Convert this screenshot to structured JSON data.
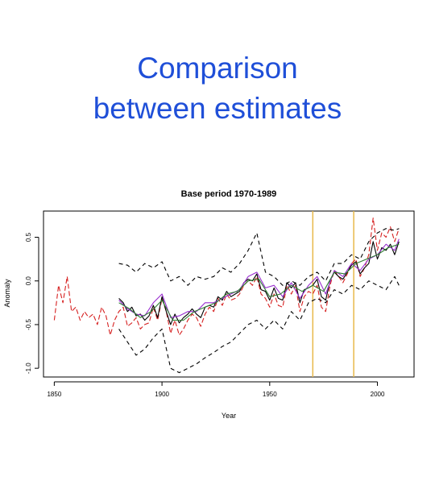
{
  "slide": {
    "title_line1": "Comparison",
    "title_line2": "between estimates"
  },
  "colors": {
    "title": "#1f4fd8",
    "base_period_lines": "#e8b84a"
  },
  "chart_data": {
    "type": "line",
    "title": "Base period 1970-1989",
    "xlabel": "Year",
    "ylabel": "Anomaly",
    "xlim": [
      1845,
      2017
    ],
    "ylim": [
      -1.1,
      0.8
    ],
    "x_ticks": [
      1850,
      1900,
      1950,
      2000
    ],
    "x_tick_labels": [
      "1850",
      "1900",
      "1950",
      "2000"
    ],
    "y_ticks": [
      -1.0,
      -0.5,
      0.0,
      0.5
    ],
    "y_tick_labels": [
      "-1.0",
      "-0.5",
      "0.0",
      "0.5"
    ],
    "grid": false,
    "vertical_lines": [
      {
        "x": 1970,
        "color": "#e8b84a"
      },
      {
        "x": 1989,
        "color": "#e8b84a"
      }
    ],
    "series": [
      {
        "color": "#d62020",
        "dash": "6,3",
        "x": [
          1850,
          1852,
          1854,
          1856,
          1858,
          1860,
          1862,
          1864,
          1866,
          1868,
          1870,
          1872,
          1874,
          1876,
          1878,
          1880,
          1882,
          1884,
          1886,
          1888,
          1890,
          1892,
          1894,
          1896,
          1898,
          1900,
          1902,
          1904,
          1906,
          1908,
          1910,
          1912,
          1914,
          1916,
          1918,
          1920,
          1922,
          1924,
          1926,
          1928,
          1930,
          1932,
          1934,
          1936,
          1938,
          1940,
          1942,
          1944,
          1946,
          1948,
          1950,
          1952,
          1954,
          1956,
          1958,
          1960,
          1962,
          1964,
          1966,
          1968,
          1970,
          1972,
          1974,
          1976,
          1978,
          1980,
          1982,
          1984,
          1986,
          1988,
          1990,
          1992,
          1994,
          1996,
          1998,
          2000,
          2002,
          2004,
          2006,
          2008,
          2010
        ],
        "y": [
          -0.45,
          -0.05,
          -0.25,
          0.05,
          -0.35,
          -0.3,
          -0.45,
          -0.35,
          -0.42,
          -0.38,
          -0.5,
          -0.3,
          -0.4,
          -0.62,
          -0.45,
          -0.35,
          -0.3,
          -0.52,
          -0.48,
          -0.42,
          -0.55,
          -0.5,
          -0.48,
          -0.3,
          -0.45,
          -0.2,
          -0.35,
          -0.6,
          -0.45,
          -0.62,
          -0.55,
          -0.45,
          -0.38,
          -0.42,
          -0.52,
          -0.38,
          -0.3,
          -0.35,
          -0.2,
          -0.28,
          -0.15,
          -0.22,
          -0.2,
          -0.15,
          -0.05,
          0.0,
          -0.05,
          0.05,
          -0.15,
          -0.2,
          -0.3,
          -0.15,
          -0.28,
          -0.3,
          -0.05,
          -0.15,
          -0.05,
          -0.35,
          -0.18,
          -0.12,
          -0.15,
          -0.05,
          -0.3,
          -0.35,
          -0.05,
          0.12,
          0.05,
          -0.02,
          0.08,
          0.2,
          0.25,
          0.05,
          0.15,
          0.3,
          0.72,
          0.35,
          0.55,
          0.5,
          0.62,
          0.45,
          0.6
        ]
      },
      {
        "color": "#000000",
        "dash": "",
        "x": [
          1880,
          1882,
          1884,
          1886,
          1888,
          1890,
          1892,
          1894,
          1896,
          1898,
          1900,
          1902,
          1904,
          1906,
          1908,
          1910,
          1912,
          1914,
          1916,
          1918,
          1920,
          1922,
          1924,
          1926,
          1928,
          1930,
          1932,
          1934,
          1936,
          1938,
          1940,
          1942,
          1944,
          1946,
          1948,
          1950,
          1952,
          1954,
          1956,
          1958,
          1960,
          1962,
          1964,
          1966,
          1968,
          1970,
          1972,
          1974,
          1976,
          1978,
          1980,
          1982,
          1984,
          1986,
          1988,
          1990,
          1992,
          1994,
          1996,
          1998,
          2000,
          2002,
          2004,
          2006,
          2008,
          2010
        ],
        "y": [
          -0.2,
          -0.25,
          -0.35,
          -0.3,
          -0.4,
          -0.38,
          -0.45,
          -0.4,
          -0.28,
          -0.42,
          -0.18,
          -0.35,
          -0.5,
          -0.38,
          -0.48,
          -0.42,
          -0.38,
          -0.32,
          -0.38,
          -0.42,
          -0.3,
          -0.28,
          -0.3,
          -0.18,
          -0.22,
          -0.12,
          -0.18,
          -0.15,
          -0.12,
          -0.02,
          0.02,
          0.0,
          0.08,
          -0.1,
          -0.12,
          -0.22,
          -0.08,
          -0.2,
          -0.22,
          -0.02,
          -0.08,
          -0.02,
          -0.25,
          -0.1,
          -0.08,
          -0.05,
          0.02,
          -0.18,
          -0.22,
          0.0,
          0.1,
          0.05,
          0.02,
          0.1,
          0.18,
          0.22,
          0.08,
          0.15,
          0.2,
          0.45,
          0.25,
          0.38,
          0.35,
          0.42,
          0.3,
          0.45
        ]
      },
      {
        "color": "#9a2fd0",
        "dash": "",
        "x": [
          1880,
          1884,
          1888,
          1892,
          1896,
          1900,
          1904,
          1908,
          1912,
          1916,
          1920,
          1924,
          1928,
          1932,
          1936,
          1940,
          1944,
          1948,
          1952,
          1956,
          1960,
          1964,
          1968,
          1972,
          1976,
          1980,
          1984,
          1988,
          1992,
          1996,
          2000,
          2004,
          2008,
          2010
        ],
        "y": [
          -0.22,
          -0.32,
          -0.38,
          -0.4,
          -0.25,
          -0.15,
          -0.42,
          -0.4,
          -0.35,
          -0.35,
          -0.25,
          -0.25,
          -0.2,
          -0.15,
          -0.1,
          0.05,
          0.1,
          -0.08,
          -0.05,
          -0.18,
          -0.02,
          -0.2,
          -0.05,
          0.05,
          -0.15,
          0.12,
          0.05,
          0.2,
          0.12,
          0.25,
          0.3,
          0.42,
          0.35,
          0.48
        ]
      },
      {
        "color": "#2e7d32",
        "dash": "",
        "x": [
          1880,
          1885,
          1890,
          1895,
          1900,
          1905,
          1910,
          1915,
          1920,
          1925,
          1930,
          1935,
          1940,
          1945,
          1950,
          1955,
          1960,
          1965,
          1970,
          1975,
          1980,
          1985,
          1990,
          1995,
          2000,
          2005,
          2010
        ],
        "y": [
          -0.25,
          -0.32,
          -0.42,
          -0.35,
          -0.22,
          -0.45,
          -0.45,
          -0.35,
          -0.3,
          -0.25,
          -0.15,
          -0.12,
          0.0,
          0.02,
          -0.18,
          -0.15,
          -0.05,
          -0.12,
          -0.05,
          -0.12,
          0.1,
          0.08,
          0.2,
          0.25,
          0.3,
          0.38,
          0.42
        ]
      },
      {
        "color": "#000000",
        "dash": "5,4",
        "x": [
          1880,
          1884,
          1888,
          1892,
          1896,
          1900,
          1904,
          1908,
          1912,
          1916,
          1920,
          1924,
          1928,
          1932,
          1936,
          1940,
          1944,
          1948,
          1952,
          1956,
          1960,
          1964,
          1968,
          1972,
          1976,
          1980,
          1984,
          1988,
          1992,
          1996,
          2000,
          2004,
          2008,
          2010
        ],
        "y": [
          0.2,
          0.18,
          0.1,
          0.2,
          0.15,
          0.22,
          0.0,
          0.05,
          -0.05,
          0.05,
          0.02,
          0.05,
          0.15,
          0.1,
          0.2,
          0.35,
          0.55,
          0.1,
          0.05,
          -0.05,
          0.0,
          -0.05,
          0.05,
          0.1,
          0.0,
          0.2,
          0.2,
          0.3,
          0.25,
          0.45,
          0.55,
          0.6,
          0.58,
          0.6
        ]
      },
      {
        "color": "#000000",
        "dash": "5,4",
        "x": [
          1880,
          1884,
          1888,
          1892,
          1896,
          1900,
          1904,
          1908,
          1912,
          1916,
          1920,
          1924,
          1928,
          1932,
          1936,
          1940,
          1944,
          1948,
          1952,
          1956,
          1960,
          1964,
          1968,
          1972,
          1976,
          1980,
          1984,
          1988,
          1992,
          1996,
          2000,
          2004,
          2008,
          2010
        ],
        "y": [
          -0.55,
          -0.7,
          -0.85,
          -0.78,
          -0.65,
          -0.55,
          -1.0,
          -1.05,
          -1.0,
          -0.95,
          -0.88,
          -0.82,
          -0.75,
          -0.7,
          -0.6,
          -0.5,
          -0.45,
          -0.55,
          -0.45,
          -0.55,
          -0.35,
          -0.45,
          -0.25,
          -0.2,
          -0.25,
          -0.1,
          -0.15,
          -0.05,
          -0.1,
          0.0,
          -0.05,
          -0.1,
          0.05,
          -0.05
        ]
      }
    ]
  }
}
